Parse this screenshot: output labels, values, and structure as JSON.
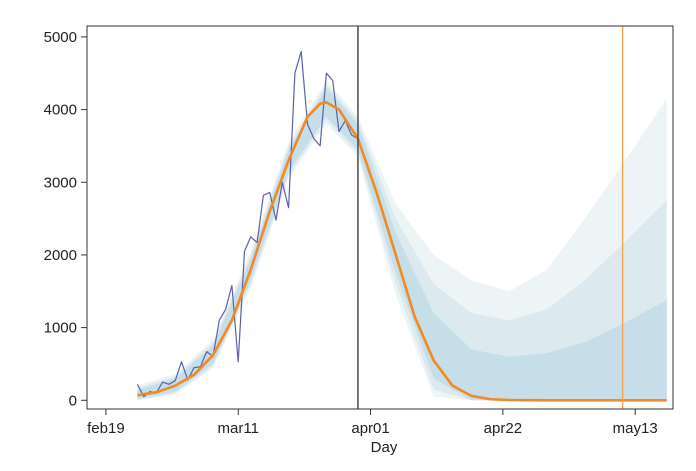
{
  "chart_data": {
    "type": "line",
    "xlabel": "Day",
    "ylabel": "",
    "x_ticks": [
      "feb19",
      "mar11",
      "apr01",
      "apr22",
      "may13"
    ],
    "y_ticks": [
      "0",
      "1000",
      "2000",
      "3000",
      "4000",
      "5000"
    ],
    "ylim": [
      -120,
      5150
    ],
    "xlim": [
      "2020-02-16",
      "2020-05-19"
    ],
    "grid": false,
    "colors": {
      "observed": "#5b62a8",
      "fitted": "#f08a24",
      "ci_inner": "#c2dce6",
      "ci_mid": "#d8e8ee",
      "ci_outer": "#eaf2f5",
      "event_line": "#555555",
      "end_line": "#f2a354"
    },
    "vertical_lines": [
      {
        "x": "2020-03-30",
        "color": "#555555"
      },
      {
        "x": "2020-05-11",
        "color": "#f2a354"
      }
    ],
    "series": [
      {
        "type": "line",
        "x": [
          "2020-02-24",
          "2020-02-25",
          "2020-02-26",
          "2020-02-27",
          "2020-02-28",
          "2020-02-29",
          "2020-03-01",
          "2020-03-02",
          "2020-03-03",
          "2020-03-04",
          "2020-03-05",
          "2020-03-06",
          "2020-03-07",
          "2020-03-08",
          "2020-03-09",
          "2020-03-10",
          "2020-03-11",
          "2020-03-12",
          "2020-03-13",
          "2020-03-14",
          "2020-03-15",
          "2020-03-16",
          "2020-03-17",
          "2020-03-18",
          "2020-03-19",
          "2020-03-20",
          "2020-03-21",
          "2020-03-22",
          "2020-03-23",
          "2020-03-24",
          "2020-03-25",
          "2020-03-26",
          "2020-03-27",
          "2020-03-28",
          "2020-03-29",
          "2020-03-30"
        ],
        "values": [
          220,
          50,
          120,
          100,
          250,
          220,
          270,
          530,
          280,
          450,
          460,
          670,
          600,
          1100,
          1250,
          1580,
          530,
          2050,
          2250,
          2170,
          2820,
          2860,
          2480,
          3000,
          2650,
          4500,
          4800,
          3800,
          3600,
          3500,
          4500,
          4400,
          3700,
          3850,
          3650,
          3600
        ]
      },
      {
        "type": "line",
        "x": [
          "2020-02-24",
          "2020-02-27",
          "2020-03-01",
          "2020-03-04",
          "2020-03-07",
          "2020-03-10",
          "2020-03-13",
          "2020-03-16",
          "2020-03-19",
          "2020-03-22",
          "2020-03-24",
          "2020-03-25",
          "2020-03-27",
          "2020-03-30",
          "2020-04-02",
          "2020-04-05",
          "2020-04-08",
          "2020-04-11",
          "2020-04-14",
          "2020-04-17",
          "2020-04-20",
          "2020-04-23",
          "2020-04-26",
          "2020-04-29",
          "2020-05-02",
          "2020-05-05",
          "2020-05-08",
          "2020-05-11",
          "2020-05-14",
          "2020-05-18"
        ],
        "values": [
          70,
          110,
          200,
          350,
          620,
          1100,
          1800,
          2600,
          3300,
          3900,
          4080,
          4100,
          4000,
          3600,
          2850,
          2000,
          1150,
          550,
          200,
          60,
          15,
          4,
          1,
          0,
          0,
          0,
          0,
          0,
          0,
          0
        ]
      }
    ],
    "bands": [
      {
        "x": [
          "2020-02-24",
          "2020-03-01",
          "2020-03-07",
          "2020-03-13",
          "2020-03-19",
          "2020-03-25",
          "2020-03-30",
          "2020-04-05",
          "2020-04-11",
          "2020-04-17",
          "2020-04-23",
          "2020-04-29",
          "2020-05-05",
          "2020-05-11",
          "2020-05-18"
        ],
        "lower": [
          20,
          120,
          500,
          1650,
          3150,
          3900,
          3450,
          1750,
          300,
          0,
          0,
          0,
          0,
          0,
          0
        ],
        "upper": [
          140,
          300,
          750,
          1950,
          3450,
          4300,
          3800,
          2300,
          1200,
          700,
          600,
          650,
          800,
          1050,
          1380
        ]
      },
      {
        "x": [
          "2020-02-24",
          "2020-03-01",
          "2020-03-07",
          "2020-03-13",
          "2020-03-19",
          "2020-03-25",
          "2020-03-30",
          "2020-04-05",
          "2020-04-11",
          "2020-04-17",
          "2020-04-23",
          "2020-04-29",
          "2020-05-05",
          "2020-05-11",
          "2020-05-18"
        ],
        "lower": [
          0,
          100,
          470,
          1600,
          3100,
          3850,
          3400,
          1600,
          150,
          0,
          0,
          0,
          0,
          0,
          0
        ],
        "upper": [
          170,
          330,
          790,
          2000,
          3500,
          4350,
          3850,
          2500,
          1600,
          1200,
          1100,
          1250,
          1650,
          2150,
          2750
        ]
      },
      {
        "x": [
          "2020-02-24",
          "2020-03-01",
          "2020-03-07",
          "2020-03-13",
          "2020-03-19",
          "2020-03-25",
          "2020-03-30",
          "2020-04-05",
          "2020-04-11",
          "2020-04-17",
          "2020-04-23",
          "2020-04-29",
          "2020-05-05",
          "2020-05-11",
          "2020-05-18"
        ],
        "lower": [
          0,
          80,
          440,
          1550,
          3050,
          3800,
          3350,
          1450,
          50,
          0,
          0,
          0,
          0,
          0,
          0
        ],
        "upper": [
          200,
          360,
          830,
          2050,
          3550,
          4400,
          3900,
          2700,
          2000,
          1650,
          1500,
          1800,
          2500,
          3250,
          4150
        ]
      }
    ]
  }
}
